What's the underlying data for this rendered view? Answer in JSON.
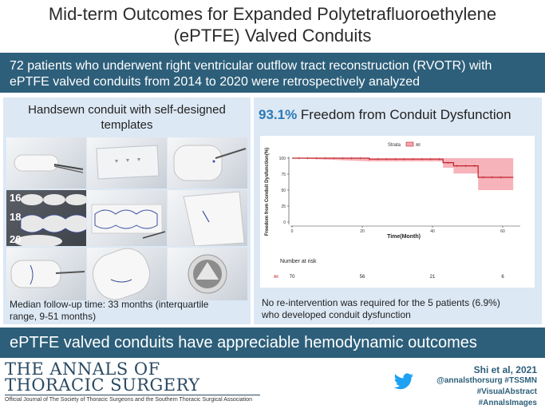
{
  "title": {
    "line1": "Mid-term Outcomes for Expanded Polytetrafluoroethylene",
    "line2": "(ePTFE) Valved Conduits"
  },
  "top_banner": {
    "line1": "72 patients who underwent right ventricular outflow tract reconstruction (RVOTR) with",
    "line2": "ePTFE valved conduits from 2014 to 2020 were retrospectively analyzed"
  },
  "left_panel": {
    "heading_line1": "Handsewn conduit with self-designed",
    "heading_line2": "templates",
    "template_labels": [
      "16",
      "18",
      "20"
    ],
    "caption_line1": "Median follow-up time: 33 months (interquartile",
    "caption_line2": "range, 9-51 months)"
  },
  "right_panel": {
    "heading_pct": "93.1%",
    "heading_rest": " Freedom from Conduit Dysfunction",
    "caption_line1": "No re-intervention was required for the 5 patients (6.9%)",
    "caption_line2": "who developed conduit dysfunction"
  },
  "chart_data": {
    "type": "line",
    "title": "",
    "legend_title": "Strata",
    "legend_entry": "All",
    "xlabel": "Time(Month)",
    "ylabel": "Freedom from Conduit Dysfunction(%)",
    "xlim": [
      0,
      65
    ],
    "ylim": [
      0,
      100
    ],
    "x_ticks": [
      0,
      20,
      40,
      60
    ],
    "y_ticks": [
      0,
      25,
      50,
      75,
      100
    ],
    "series": [
      {
        "name": "All",
        "color": "#c0202a",
        "steps": [
          [
            0,
            100
          ],
          [
            22,
            100
          ],
          [
            22,
            98.5
          ],
          [
            43,
            98.5
          ],
          [
            43,
            93
          ],
          [
            46,
            93
          ],
          [
            46,
            88
          ],
          [
            53,
            88
          ],
          [
            53,
            70
          ],
          [
            63,
            70
          ]
        ],
        "ci_upper": [
          [
            0,
            100
          ],
          [
            22,
            100
          ],
          [
            43,
            100
          ],
          [
            63,
            100
          ]
        ],
        "ci_lower": [
          [
            0,
            100
          ],
          [
            22,
            95
          ],
          [
            43,
            95
          ],
          [
            43,
            85
          ],
          [
            46,
            85
          ],
          [
            46,
            76
          ],
          [
            53,
            76
          ],
          [
            53,
            50
          ],
          [
            63,
            50
          ]
        ]
      }
    ],
    "risk_table": {
      "label": "Number at risk",
      "strata": "All",
      "times": [
        0,
        20,
        40,
        60
      ],
      "counts": [
        "70",
        "56",
        "21",
        "6"
      ]
    }
  },
  "bottom_banner": {
    "text": "ePTFE valved conduits have appreciable hemodynamic outcomes"
  },
  "journal": {
    "name_line1": "THE ANNALS OF",
    "name_line2": "THORACIC SURGERY",
    "subtitle": "Official Journal of The Society of Thoracic Surgeons and the Southern Thoracic Surgical Association"
  },
  "credit": {
    "author": "Shi et al, 2021",
    "handle": "@annalsthorsurg #TSSMN",
    "tags": "#VisualAbstract #AnnalsImages"
  },
  "colors": {
    "banner": "#2d5f7a",
    "panel": "#dce8f4",
    "accent": "#2d79b5",
    "curve": "#c0202a",
    "ci": "#f4a6ad"
  }
}
